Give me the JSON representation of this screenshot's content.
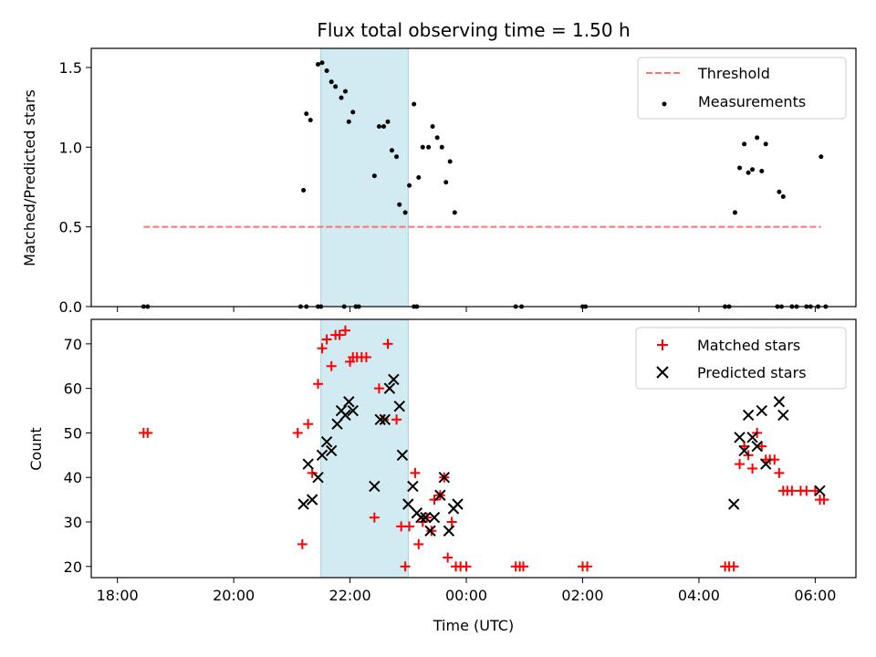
{
  "chart_data": [
    {
      "type": "scatter",
      "title": "Flux total observing time = 1.50 h",
      "xlabel": "",
      "ylabel": "Matched/Predicted stars",
      "x_unit": "hours since 18:00 UTC",
      "xlim": [
        -0.45,
        12.7
      ],
      "ylim": [
        0,
        1.62
      ],
      "yticks": [
        0.0,
        0.5,
        1.0,
        1.5
      ],
      "ytick_labels": [
        "0.0",
        "0.5",
        "1.0",
        "1.5"
      ],
      "shaded_region": {
        "x_start": 3.5,
        "x_end": 5.0,
        "color": "#add8e6"
      },
      "threshold": {
        "name": "Threshold",
        "y": 0.5,
        "x_start": 0.45,
        "x_end": 12.1,
        "color": "#ff7070"
      },
      "legend": {
        "placement": "top-right",
        "entries": [
          "Threshold",
          "Measurements"
        ]
      },
      "series": [
        {
          "name": "Measurements",
          "marker": "dot",
          "color": "#000000",
          "points": [
            [
              0.45,
              0.0
            ],
            [
              0.52,
              0.0
            ],
            [
              3.25,
              0.0
            ],
            [
              4.1,
              0.0
            ],
            [
              4.15,
              0.0
            ],
            [
              3.9,
              0.0
            ],
            [
              3.45,
              0.0
            ],
            [
              3.5,
              0.0
            ],
            [
              3.15,
              0.0
            ],
            [
              5.1,
              0.0
            ],
            [
              5.15,
              0.0
            ],
            [
              6.85,
              0.0
            ],
            [
              6.95,
              0.0
            ],
            [
              8.0,
              0.0
            ],
            [
              8.05,
              0.0
            ],
            [
              10.45,
              0.0
            ],
            [
              10.52,
              0.0
            ],
            [
              11.35,
              0.0
            ],
            [
              11.42,
              0.0
            ],
            [
              11.6,
              0.0
            ],
            [
              11.68,
              0.0
            ],
            [
              11.85,
              0.0
            ],
            [
              11.92,
              0.0
            ],
            [
              12.05,
              0.0
            ],
            [
              12.18,
              0.0
            ],
            [
              3.2,
              0.73
            ],
            [
              3.25,
              1.21
            ],
            [
              3.32,
              1.17
            ],
            [
              3.45,
              1.52
            ],
            [
              3.52,
              1.53
            ],
            [
              3.6,
              1.48
            ],
            [
              3.68,
              1.41
            ],
            [
              3.75,
              1.38
            ],
            [
              3.85,
              1.31
            ],
            [
              3.92,
              1.35
            ],
            [
              3.98,
              1.16
            ],
            [
              4.05,
              1.22
            ],
            [
              4.42,
              0.82
            ],
            [
              4.5,
              1.13
            ],
            [
              4.58,
              1.13
            ],
            [
              4.65,
              1.16
            ],
            [
              4.72,
              0.98
            ],
            [
              4.8,
              0.94
            ],
            [
              4.85,
              0.64
            ],
            [
              4.95,
              0.59
            ],
            [
              5.02,
              0.76
            ],
            [
              5.1,
              1.27
            ],
            [
              5.18,
              0.81
            ],
            [
              5.25,
              1.0
            ],
            [
              5.35,
              1.0
            ],
            [
              5.42,
              1.13
            ],
            [
              5.5,
              1.06
            ],
            [
              5.58,
              1.0
            ],
            [
              5.65,
              0.78
            ],
            [
              5.72,
              0.91
            ],
            [
              5.8,
              0.59
            ],
            [
              10.62,
              0.59
            ],
            [
              10.7,
              0.87
            ],
            [
              10.78,
              1.02
            ],
            [
              10.85,
              0.84
            ],
            [
              10.92,
              0.86
            ],
            [
              11.0,
              1.06
            ],
            [
              11.08,
              0.85
            ],
            [
              11.15,
              1.02
            ],
            [
              11.38,
              0.72
            ],
            [
              11.45,
              0.69
            ],
            [
              12.1,
              0.94
            ]
          ]
        }
      ]
    },
    {
      "type": "scatter",
      "title": "",
      "xlabel": "Time (UTC)",
      "ylabel": "Count",
      "x_unit": "hours since 18:00 UTC",
      "xlim": [
        -0.45,
        12.7
      ],
      "ylim": [
        17.5,
        75.5
      ],
      "xticks": [
        0,
        2,
        4,
        6,
        8,
        10,
        12
      ],
      "xtick_labels": [
        "18:00",
        "20:00",
        "22:00",
        "00:00",
        "02:00",
        "04:00",
        "06:00"
      ],
      "yticks": [
        20,
        30,
        40,
        50,
        60,
        70
      ],
      "ytick_labels": [
        "20",
        "30",
        "40",
        "50",
        "60",
        "70"
      ],
      "shaded_region": {
        "x_start": 3.5,
        "x_end": 5.0,
        "color": "#add8e6"
      },
      "legend": {
        "placement": "top-right",
        "entries": [
          "Matched stars",
          "Predicted stars"
        ]
      },
      "series": [
        {
          "name": "Matched stars",
          "marker": "plus",
          "color": "#ff0000",
          "points": [
            [
              0.45,
              50
            ],
            [
              0.52,
              50
            ],
            [
              3.1,
              50
            ],
            [
              3.18,
              25
            ],
            [
              3.28,
              52
            ],
            [
              3.35,
              41
            ],
            [
              3.45,
              61
            ],
            [
              3.52,
              69
            ],
            [
              3.6,
              71
            ],
            [
              3.68,
              65
            ],
            [
              3.75,
              72
            ],
            [
              3.82,
              72
            ],
            [
              3.92,
              73
            ],
            [
              4.0,
              66
            ],
            [
              4.05,
              67
            ],
            [
              4.12,
              67
            ],
            [
              4.2,
              67
            ],
            [
              4.28,
              67
            ],
            [
              4.42,
              31
            ],
            [
              4.5,
              60
            ],
            [
              4.58,
              53
            ],
            [
              4.65,
              70
            ],
            [
              4.8,
              53
            ],
            [
              4.88,
              29
            ],
            [
              4.95,
              20
            ],
            [
              5.02,
              29
            ],
            [
              5.12,
              41
            ],
            [
              5.18,
              25
            ],
            [
              5.25,
              30
            ],
            [
              5.32,
              31
            ],
            [
              5.4,
              28
            ],
            [
              5.45,
              35
            ],
            [
              5.55,
              36
            ],
            [
              5.62,
              40
            ],
            [
              5.68,
              22
            ],
            [
              5.75,
              30
            ],
            [
              5.82,
              20
            ],
            [
              5.9,
              20
            ],
            [
              6.0,
              20
            ],
            [
              6.85,
              20
            ],
            [
              6.92,
              20
            ],
            [
              6.98,
              20
            ],
            [
              8.0,
              20
            ],
            [
              8.08,
              20
            ],
            [
              10.45,
              20
            ],
            [
              10.52,
              20
            ],
            [
              10.6,
              20
            ],
            [
              10.7,
              43
            ],
            [
              10.78,
              47
            ],
            [
              10.85,
              45
            ],
            [
              10.92,
              42
            ],
            [
              11.0,
              50
            ],
            [
              11.08,
              47
            ],
            [
              11.15,
              44
            ],
            [
              11.22,
              44
            ],
            [
              11.3,
              44
            ],
            [
              11.38,
              41
            ],
            [
              11.45,
              37
            ],
            [
              11.52,
              37
            ],
            [
              11.6,
              37
            ],
            [
              11.75,
              37
            ],
            [
              11.85,
              37
            ],
            [
              12.0,
              37
            ],
            [
              12.08,
              35
            ],
            [
              12.15,
              35
            ]
          ]
        },
        {
          "name": "Predicted stars",
          "marker": "x",
          "color": "#000000",
          "points": [
            [
              3.2,
              34
            ],
            [
              3.28,
              43
            ],
            [
              3.35,
              35
            ],
            [
              3.45,
              40
            ],
            [
              3.52,
              45
            ],
            [
              3.6,
              48
            ],
            [
              3.68,
              46
            ],
            [
              3.78,
              52
            ],
            [
              3.85,
              55
            ],
            [
              3.92,
              54
            ],
            [
              3.98,
              57
            ],
            [
              4.05,
              55
            ],
            [
              4.42,
              38
            ],
            [
              4.52,
              53
            ],
            [
              4.6,
              53
            ],
            [
              4.68,
              60
            ],
            [
              4.75,
              62
            ],
            [
              4.85,
              56
            ],
            [
              4.9,
              45
            ],
            [
              5.0,
              34
            ],
            [
              5.08,
              38
            ],
            [
              5.15,
              32
            ],
            [
              5.22,
              31
            ],
            [
              5.3,
              31
            ],
            [
              5.38,
              28
            ],
            [
              5.45,
              31
            ],
            [
              5.55,
              36
            ],
            [
              5.62,
              40
            ],
            [
              5.7,
              28
            ],
            [
              5.78,
              33
            ],
            [
              5.85,
              34
            ],
            [
              10.6,
              34
            ],
            [
              10.7,
              49
            ],
            [
              10.78,
              46
            ],
            [
              10.85,
              54
            ],
            [
              10.92,
              49
            ],
            [
              11.0,
              47
            ],
            [
              11.08,
              55
            ],
            [
              11.15,
              43
            ],
            [
              11.38,
              57
            ],
            [
              11.45,
              54
            ],
            [
              12.08,
              37
            ]
          ]
        }
      ]
    }
  ]
}
